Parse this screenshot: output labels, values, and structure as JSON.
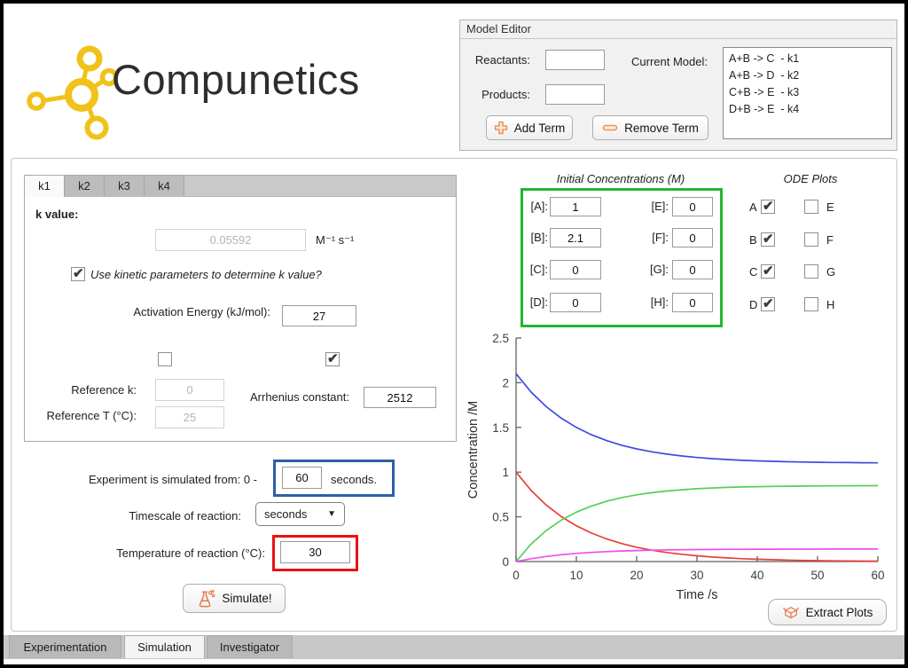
{
  "logo": {
    "text": "Compunetics"
  },
  "model_editor": {
    "title": "Model Editor",
    "reactants_label": "Reactants:",
    "reactants_value": "",
    "products_label": "Products:",
    "products_value": "",
    "current_model_label": "Current Model:",
    "model_terms": [
      "A+B -> C  - k1",
      "A+B -> D  - k2",
      "C+B -> E  - k3",
      "D+B -> E  - k4"
    ],
    "add_term_label": "Add Term",
    "remove_term_label": "Remove Term"
  },
  "k_panel": {
    "tabs": [
      "k1",
      "k2",
      "k3",
      "k4"
    ],
    "active_tab": "k1",
    "k_value_label": "k value:",
    "k_value": "0.05592",
    "k_units": "M⁻¹ s⁻¹",
    "use_kinetic_label": "Use kinetic parameters to determine k value?",
    "use_kinetic_checked": true,
    "activation_energy_label": "Activation Energy (kJ/mol):",
    "activation_energy_value": "27",
    "reference_k_checked": false,
    "reference_k_label": "Reference k:",
    "reference_k_value": "0",
    "reference_t_label": "Reference T (°C):",
    "reference_t_value": "25",
    "arrhenius_checked": true,
    "arrhenius_label": "Arrhenius constant:",
    "arrhenius_value": "2512"
  },
  "simulation_controls": {
    "time_prefix": "Experiment is simulated from: 0  -",
    "time_value": "60",
    "time_suffix": "seconds.",
    "timescale_label": "Timescale of reaction:",
    "timescale_value": "seconds",
    "temperature_label": "Temperature of reaction (°C):",
    "temperature_value": "30",
    "simulate_label": "Simulate!"
  },
  "initial_concentrations": {
    "title": "Initial Concentrations (M)",
    "fields": [
      {
        "label": "[A]:",
        "value": "1"
      },
      {
        "label": "[B]:",
        "value": "2.1"
      },
      {
        "label": "[C]:",
        "value": "0"
      },
      {
        "label": "[D]:",
        "value": "0"
      },
      {
        "label": "[E]:",
        "value": "0"
      },
      {
        "label": "[F]:",
        "value": "0"
      },
      {
        "label": "[G]:",
        "value": "0"
      },
      {
        "label": "[H]:",
        "value": "0"
      }
    ]
  },
  "ode_plots": {
    "title": "ODE Plots",
    "items": [
      {
        "label": "A",
        "checked": true
      },
      {
        "label": "B",
        "checked": true
      },
      {
        "label": "C",
        "checked": true
      },
      {
        "label": "D",
        "checked": true
      },
      {
        "label": "E",
        "checked": false
      },
      {
        "label": "F",
        "checked": false
      },
      {
        "label": "G",
        "checked": false
      },
      {
        "label": "H",
        "checked": false
      }
    ]
  },
  "chart_data": {
    "type": "line",
    "xlabel": "Time /s",
    "ylabel": "Concentration /M",
    "xlim": [
      0,
      60
    ],
    "ylim": [
      0,
      2.5
    ],
    "xticks": [
      0,
      10,
      20,
      30,
      40,
      50,
      60
    ],
    "yticks": [
      0,
      0.5,
      1,
      1.5,
      2,
      2.5
    ],
    "grid": false,
    "legend": "none",
    "x": [
      0,
      2.5,
      5,
      7.5,
      10,
      12.5,
      15,
      17.5,
      20,
      22.5,
      25,
      27.5,
      30,
      32.5,
      35,
      37.5,
      40,
      42.5,
      45,
      47.5,
      50,
      52.5,
      55,
      57.5,
      60
    ],
    "series": [
      {
        "name": "A",
        "color": "#e8403a",
        "values": [
          1,
          0.795,
          0.632,
          0.503,
          0.4,
          0.318,
          0.253,
          0.201,
          0.16,
          0.127,
          0.101,
          0.081,
          0.064,
          0.051,
          0.041,
          0.032,
          0.026,
          0.021,
          0.016,
          0.013,
          0.01,
          0.008,
          0.007,
          0.005,
          0.004
        ]
      },
      {
        "name": "B",
        "color": "#3c4ce0",
        "values": [
          2.1,
          1.895,
          1.732,
          1.603,
          1.5,
          1.418,
          1.353,
          1.301,
          1.26,
          1.227,
          1.201,
          1.181,
          1.164,
          1.151,
          1.141,
          1.132,
          1.126,
          1.121,
          1.116,
          1.113,
          1.11,
          1.108,
          1.107,
          1.105,
          1.104
        ]
      },
      {
        "name": "C",
        "color": "#53d058",
        "values": [
          0,
          0.196,
          0.347,
          0.463,
          0.553,
          0.621,
          0.674,
          0.715,
          0.746,
          0.77,
          0.789,
          0.803,
          0.814,
          0.822,
          0.829,
          0.834,
          0.837,
          0.84,
          0.842,
          0.844,
          0.845,
          0.846,
          0.847,
          0.848,
          0.848
        ]
      },
      {
        "name": "D",
        "color": "#ef4def",
        "values": [
          0,
          0.032,
          0.057,
          0.076,
          0.091,
          0.102,
          0.111,
          0.118,
          0.123,
          0.127,
          0.13,
          0.132,
          0.134,
          0.135,
          0.137,
          0.137,
          0.138,
          0.138,
          0.139,
          0.139,
          0.139,
          0.14,
          0.14,
          0.14,
          0.14
        ]
      }
    ]
  },
  "extract_plots_label": "Extract Plots",
  "bottom_tabs": {
    "items": [
      "Experimentation",
      "Simulation",
      "Investigator"
    ],
    "active": "Simulation"
  },
  "colors": {
    "accent_orange": "#e8764a",
    "logo_yellow": "#f0c21a",
    "highlight_green": "#25b432",
    "highlight_blue": "#2e5fa9",
    "highlight_red": "#ea1111"
  }
}
